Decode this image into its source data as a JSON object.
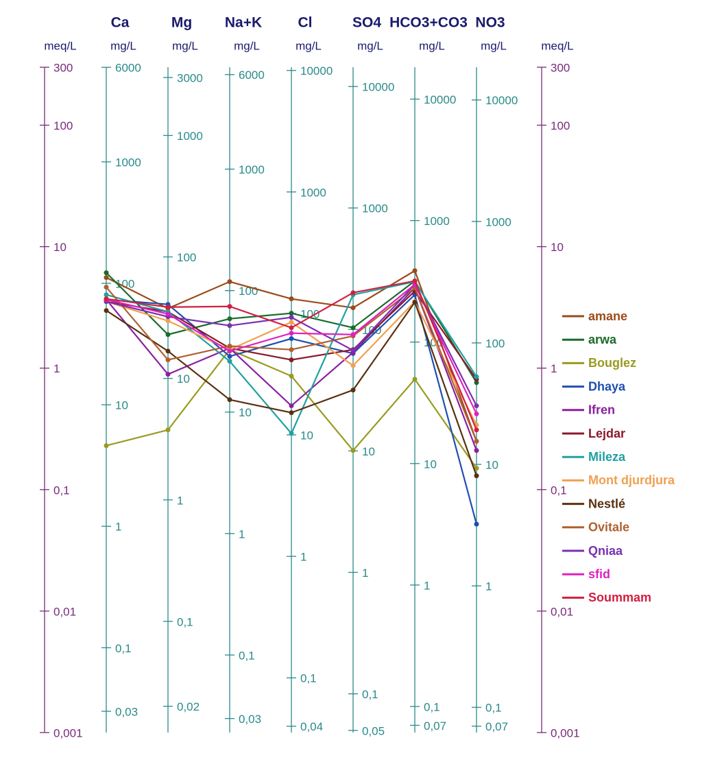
{
  "chart_data": {
    "type": "line",
    "log": true,
    "y_label": "meq/L",
    "ylim": [
      0.001,
      300
    ],
    "yticks": [
      300,
      100,
      10,
      1,
      {
        "value": 0.1,
        "label": "0,1"
      },
      {
        "value": 0.01,
        "label": "0,01"
      },
      {
        "value": 0.001,
        "label": "0,001"
      }
    ],
    "categories": [
      "Ca",
      "Mg",
      "Na+K",
      "Cl",
      "SO4",
      "HCO3+CO3",
      "NO3"
    ],
    "ion_axes": [
      {
        "unit": "mg/L",
        "ylim": [
          0.02004,
          6012
        ],
        "yticks": [
          6000,
          1000,
          100,
          10,
          1,
          {
            "value": 0.1,
            "label": "0,1"
          },
          {
            "value": 0.03,
            "label": "0,03"
          }
        ]
      },
      {
        "unit": "mg/L",
        "ylim": [
          0.01215,
          3645
        ],
        "yticks": [
          3000,
          1000,
          100,
          10,
          1,
          {
            "value": 0.1,
            "label": "0,1"
          },
          {
            "value": 0.02,
            "label": "0,02"
          }
        ]
      },
      {
        "unit": "mg/L",
        "ylim": [
          0.023,
          6900
        ],
        "yticks": [
          6000,
          1000,
          100,
          10,
          1,
          {
            "value": 0.1,
            "label": "0,1"
          },
          {
            "value": 0.03,
            "label": "0,03"
          }
        ]
      },
      {
        "unit": "mg/L",
        "ylim": [
          0.03545,
          10635
        ],
        "yticks": [
          10000,
          1000,
          100,
          10,
          1,
          {
            "value": 0.1,
            "label": "0,1"
          },
          {
            "value": 0.04,
            "label": "0,04"
          }
        ]
      },
      {
        "unit": "mg/L",
        "ylim": [
          0.048,
          14409
        ],
        "yticks": [
          10000,
          1000,
          100,
          10,
          1,
          {
            "value": 0.1,
            "label": "0,1"
          },
          {
            "value": 0.05,
            "label": "0,05"
          }
        ]
      },
      {
        "unit": "mg/L",
        "ylim": [
          0.061,
          18300
        ],
        "yticks": [
          10000,
          1000,
          100,
          10,
          1,
          {
            "value": 0.1,
            "label": "0,1"
          },
          {
            "value": 0.07,
            "label": "0,07"
          }
        ]
      },
      {
        "unit": "mg/L",
        "ylim": [
          0.062,
          18600
        ],
        "yticks": [
          10000,
          1000,
          100,
          10,
          1,
          {
            "value": 0.1,
            "label": "0,1"
          },
          {
            "value": 0.07,
            "label": "0,07"
          }
        ]
      }
    ],
    "series": [
      {
        "name": "amane",
        "color": "#9c4a1a",
        "values": [
          5.57,
          3.1,
          5.15,
          3.72,
          3.14,
          6.34,
          0.25
        ]
      },
      {
        "name": "arwa",
        "color": "#1a6b2a",
        "values": [
          6.1,
          1.89,
          2.55,
          2.83,
          2.15,
          5.22,
          0.76
        ]
      },
      {
        "name": "Bouglez",
        "color": "#9a9a20",
        "values": [
          0.23,
          0.31,
          1.42,
          0.86,
          0.21,
          0.81,
          0.15
        ]
      },
      {
        "name": "Dhaya",
        "color": "#1f4fb0",
        "values": [
          3.67,
          3.35,
          1.25,
          1.75,
          1.32,
          4.02,
          0.052
        ]
      },
      {
        "name": "Ifren",
        "color": "#8a1fa0",
        "values": [
          3.67,
          0.89,
          1.46,
          0.49,
          1.35,
          4.58,
          0.21
        ]
      },
      {
        "name": "Lejdar",
        "color": "#8b1a2a",
        "values": [
          3.53,
          2.91,
          1.46,
          1.17,
          1.42,
          4.3,
          0.81
        ]
      },
      {
        "name": "Mileza",
        "color": "#20a0a0",
        "values": [
          4.02,
          2.91,
          1.14,
          0.29,
          4.02,
          5.15,
          0.85
        ]
      },
      {
        "name": "Mont djurdjura",
        "color": "#f0a050",
        "values": [
          3.53,
          2.45,
          1.42,
          2.39,
          1.05,
          3.53,
          0.34
        ]
      },
      {
        "name": "Nestlé",
        "color": "#5a3010",
        "values": [
          2.98,
          1.38,
          0.55,
          0.43,
          0.66,
          3.49,
          0.13
        ]
      },
      {
        "name": "Ovitale",
        "color": "#b06030",
        "values": [
          4.64,
          1.17,
          1.52,
          1.42,
          1.84,
          4.58,
          0.25
        ]
      },
      {
        "name": "Qniaa",
        "color": "#7a30b0",
        "values": [
          3.53,
          2.65,
          2.24,
          2.62,
          1.4,
          4.89,
          0.49
        ]
      },
      {
        "name": "sfid",
        "color": "#e020c0",
        "values": [
          3.67,
          2.79,
          1.38,
          1.94,
          1.89,
          4.89,
          0.42
        ]
      },
      {
        "name": "Soummam",
        "color": "#d02040",
        "values": [
          3.72,
          3.18,
          3.22,
          2.15,
          4.18,
          5.22,
          0.31
        ]
      }
    ]
  }
}
